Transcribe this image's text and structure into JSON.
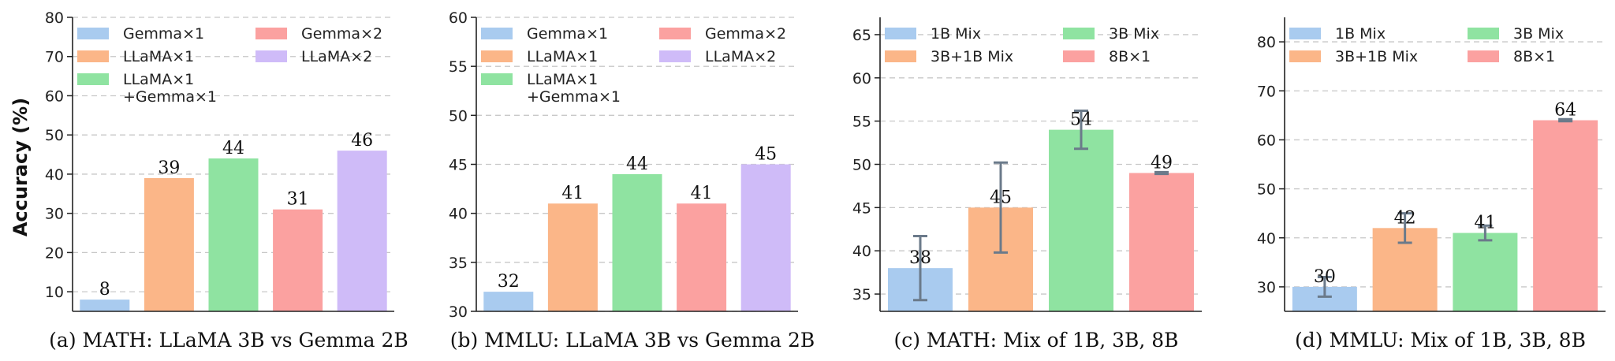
{
  "colors": {
    "blue": "#a9cbef",
    "orange": "#fbb688",
    "green": "#8fe3a1",
    "red": "#fba1a0",
    "purple": "#cfbbf8",
    "grid": "#c8c8c8",
    "errorbar": "#6b7a8a"
  },
  "shared": {
    "ylabel": "Accuracy (%)"
  },
  "chart_data": [
    {
      "type": "bar",
      "caption": "(a) MATH: LLaMA 3B vs Gemma 2B",
      "categories": [
        "Gemma×1",
        "LLaMA×1",
        "LLaMA×1\n+Gemma×1",
        "Gemma×2",
        "LLaMA×2"
      ],
      "values": [
        8,
        39,
        44,
        31,
        46
      ],
      "value_labels": [
        "8",
        "39",
        "44",
        "31",
        "46"
      ],
      "colors": [
        "#a9cbef",
        "#fbb688",
        "#8fe3a1",
        "#fba1a0",
        "#cfbbf8"
      ],
      "errors": null,
      "ylim": [
        5,
        80
      ],
      "yticks": [
        10,
        20,
        30,
        40,
        50,
        60,
        70,
        80
      ],
      "legend": {
        "placement": "top",
        "columns": 2,
        "entries": [
          {
            "lines": [
              "Gemma×1"
            ],
            "color": "#a9cbef"
          },
          {
            "lines": [
              "Gemma×2"
            ],
            "color": "#fba1a0"
          },
          {
            "lines": [
              "LLaMA×1"
            ],
            "color": "#fbb688"
          },
          {
            "lines": [
              "LLaMA×2"
            ],
            "color": "#cfbbf8"
          },
          {
            "lines": [
              "LLaMA×1",
              "+Gemma×1"
            ],
            "color": "#8fe3a1"
          }
        ]
      },
      "show_ylabel": true
    },
    {
      "type": "bar",
      "caption": "(b) MMLU: LLaMA 3B vs Gemma 2B",
      "categories": [
        "Gemma×1",
        "LLaMA×1",
        "LLaMA×1\n+Gemma×1",
        "Gemma×2",
        "LLaMA×2"
      ],
      "values": [
        32,
        41,
        44,
        41,
        45
      ],
      "value_labels": [
        "32",
        "41",
        "44",
        "41",
        "45"
      ],
      "colors": [
        "#a9cbef",
        "#fbb688",
        "#8fe3a1",
        "#fba1a0",
        "#cfbbf8"
      ],
      "errors": null,
      "ylim": [
        30,
        60
      ],
      "yticks": [
        30,
        35,
        40,
        45,
        50,
        55,
        60
      ],
      "legend": {
        "placement": "top",
        "columns": 2,
        "entries": [
          {
            "lines": [
              "Gemma×1"
            ],
            "color": "#a9cbef"
          },
          {
            "lines": [
              "Gemma×2"
            ],
            "color": "#fba1a0"
          },
          {
            "lines": [
              "LLaMA×1"
            ],
            "color": "#fbb688"
          },
          {
            "lines": [
              "LLaMA×2"
            ],
            "color": "#cfbbf8"
          },
          {
            "lines": [
              "LLaMA×1",
              "+Gemma×1"
            ],
            "color": "#8fe3a1"
          }
        ]
      },
      "show_ylabel": false
    },
    {
      "type": "bar",
      "caption": "(c) MATH: Mix of 1B, 3B, 8B",
      "categories": [
        "1B Mix",
        "3B+1B Mix",
        "3B Mix",
        "8B×1"
      ],
      "values": [
        38,
        45,
        54,
        49
      ],
      "value_labels": [
        "38",
        "45",
        "54",
        "49"
      ],
      "colors": [
        "#a9cbef",
        "#fbb688",
        "#8fe3a1",
        "#fba1a0"
      ],
      "errors": [
        3.7,
        5.2,
        2.2,
        0.1
      ],
      "ylim": [
        33,
        67
      ],
      "yticks": [
        35,
        40,
        45,
        50,
        55,
        60,
        65
      ],
      "legend": {
        "placement": "top",
        "columns": 2,
        "entries": [
          {
            "lines": [
              "1B Mix"
            ],
            "color": "#a9cbef"
          },
          {
            "lines": [
              "3B Mix"
            ],
            "color": "#8fe3a1"
          },
          {
            "lines": [
              "3B+1B Mix"
            ],
            "color": "#fbb688"
          },
          {
            "lines": [
              "8B×1"
            ],
            "color": "#fba1a0"
          }
        ]
      },
      "show_ylabel": false
    },
    {
      "type": "bar",
      "caption": "(d) MMLU: Mix of 1B, 3B, 8B",
      "categories": [
        "1B Mix",
        "3B+1B Mix",
        "3B Mix",
        "8B×1"
      ],
      "values": [
        30,
        42,
        41,
        64
      ],
      "value_labels": [
        "30",
        "42",
        "41",
        "64"
      ],
      "colors": [
        "#a9cbef",
        "#fbb688",
        "#8fe3a1",
        "#fba1a0"
      ],
      "errors": [
        2.0,
        3.0,
        1.5,
        0.2
      ],
      "ylim": [
        25,
        85
      ],
      "yticks": [
        30,
        40,
        50,
        60,
        70,
        80
      ],
      "legend": {
        "placement": "top",
        "columns": 2,
        "entries": [
          {
            "lines": [
              "1B Mix"
            ],
            "color": "#a9cbef"
          },
          {
            "lines": [
              "3B Mix"
            ],
            "color": "#8fe3a1"
          },
          {
            "lines": [
              "3B+1B Mix"
            ],
            "color": "#fbb688"
          },
          {
            "lines": [
              "8B×1"
            ],
            "color": "#fba1a0"
          }
        ]
      },
      "show_ylabel": false
    }
  ]
}
